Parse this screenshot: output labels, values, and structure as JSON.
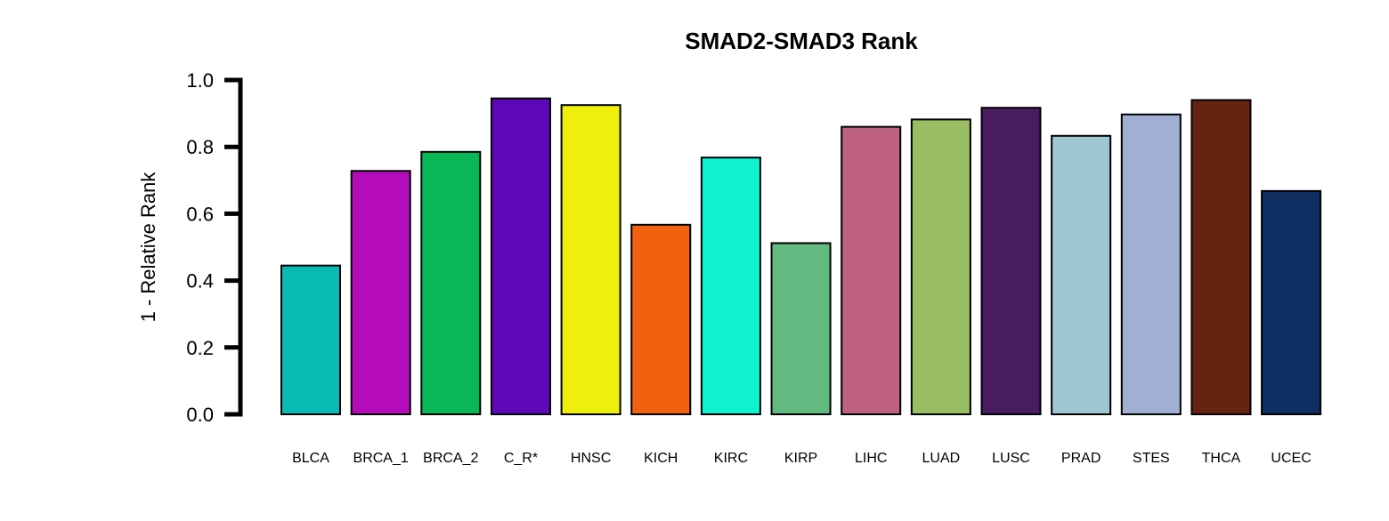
{
  "chart_data": {
    "type": "bar",
    "title": "SMAD2-SMAD3 Rank",
    "xlabel": "",
    "ylabel": "1 - Relative Rank",
    "ylim": [
      0,
      1.0
    ],
    "yticks": [
      "0.0",
      "0.2",
      "0.4",
      "0.6",
      "0.8",
      "1.0"
    ],
    "ytick_values": [
      0,
      0.2,
      0.4,
      0.6,
      0.8,
      1.0
    ],
    "grid": false,
    "categories": [
      "BLCA",
      "BRCA_1",
      "BRCA_2",
      "C_R*",
      "HNSC",
      "KICH",
      "KIRC",
      "KIRP",
      "LIHC",
      "LUAD",
      "LUSC",
      "PRAD",
      "STES",
      "THCA",
      "UCEC"
    ],
    "values": [
      0.445,
      0.728,
      0.785,
      0.945,
      0.925,
      0.567,
      0.768,
      0.512,
      0.86,
      0.882,
      0.917,
      0.833,
      0.897,
      0.94,
      0.668
    ],
    "colors": [
      "#0ABAB5",
      "#B50DBB",
      "#08B857",
      "#5F08BA",
      "#EEF00C",
      "#F26110",
      "#0FF2D0",
      "#62BA80",
      "#BE6180",
      "#98BD62",
      "#481C5F",
      "#A0C5D3",
      "#A0AFD3",
      "#652412",
      "#0F2E62"
    ]
  }
}
